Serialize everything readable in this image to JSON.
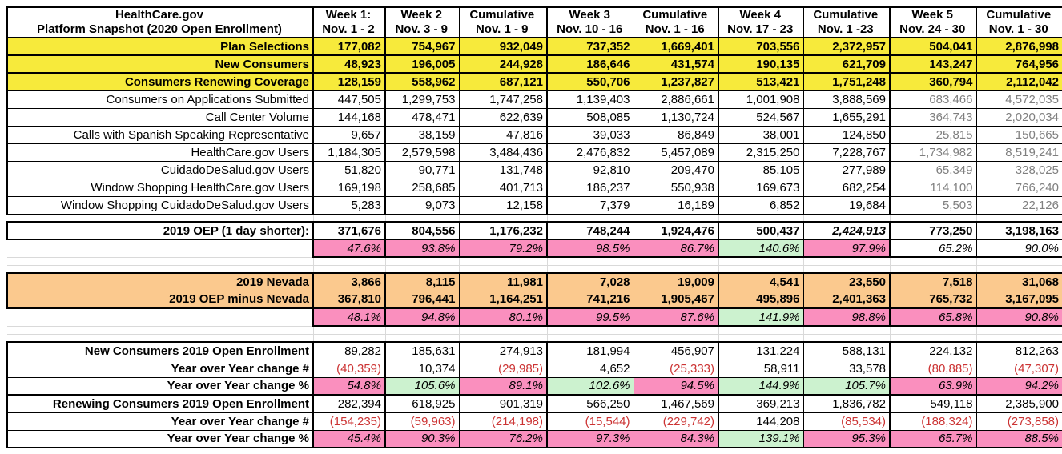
{
  "colors": {
    "yellow_highlight": "#F7EA3B",
    "pink_highlight": "#FA8FBE",
    "green_highlight": "#CCF2CF",
    "orange_highlight": "#FBC98E",
    "negative_text": "#CC3333",
    "muted_text": "#7F7F7F"
  },
  "table": {
    "title_line1": "HealthCare.gov",
    "title_line2": "Platform Snapshot (2020 Open Enrollment)",
    "columns": [
      {
        "week": "Week 1:",
        "dates": "Nov. 1 - 2"
      },
      {
        "week": "Week 2",
        "dates": "Nov. 3 - 9"
      },
      {
        "week": "Cumulative",
        "dates": "Nov. 1 - 9"
      },
      {
        "week": "Week 3",
        "dates": "Nov. 10 - 16"
      },
      {
        "week": "Cumulative",
        "dates": "Nov. 1 - 16"
      },
      {
        "week": "Week 4",
        "dates": "Nov. 17 - 23"
      },
      {
        "week": "Cumulative",
        "dates": "Nov. 1 -23"
      },
      {
        "week": "Week 5",
        "dates": "Nov. 24 - 30"
      },
      {
        "week": "Cumulative",
        "dates": "Nov. 1 - 30"
      }
    ],
    "rows": [
      {
        "label": "Plan Selections",
        "highlight": "yellow",
        "values": [
          "177,082",
          "754,967",
          "932,049",
          "737,352",
          "1,669,401",
          "703,556",
          "2,372,957",
          "504,041",
          "2,876,998"
        ]
      },
      {
        "label": "New Consumers",
        "highlight": "yellow",
        "values": [
          "48,923",
          "196,005",
          "244,928",
          "186,646",
          "431,574",
          "190,135",
          "621,709",
          "143,247",
          "764,956"
        ]
      },
      {
        "label": "Consumers Renewing Coverage",
        "highlight": "yellow",
        "values": [
          "128,159",
          "558,962",
          "687,121",
          "550,706",
          "1,237,827",
          "513,421",
          "1,751,248",
          "360,794",
          "2,112,042"
        ]
      },
      {
        "label": "Consumers on Applications Submitted",
        "highlight": null,
        "values": [
          "447,505",
          "1,299,753",
          "1,747,258",
          "1,139,403",
          "2,886,661",
          "1,001,908",
          "3,888,569",
          "683,466",
          "4,572,035"
        ]
      },
      {
        "label": "Call Center Volume",
        "highlight": null,
        "values": [
          "144,168",
          "478,471",
          "622,639",
          "508,085",
          "1,130,724",
          "524,567",
          "1,655,291",
          "364,743",
          "2,020,034"
        ]
      },
      {
        "label": "Calls with Spanish Speaking Representative",
        "highlight": null,
        "values": [
          "9,657",
          "38,159",
          "47,816",
          "39,033",
          "86,849",
          "38,001",
          "124,850",
          "25,815",
          "150,665"
        ]
      },
      {
        "label": "HealthCare.gov Users",
        "highlight": null,
        "values": [
          "1,184,305",
          "2,579,598",
          "3,484,436",
          "2,476,832",
          "5,457,089",
          "2,315,250",
          "7,228,767",
          "1,734,982",
          "8,519,241"
        ]
      },
      {
        "label": "CuidadoDeSalud.gov Users",
        "highlight": null,
        "values": [
          "51,820",
          "90,771",
          "131,748",
          "92,810",
          "209,470",
          "85,105",
          "277,989",
          "65,349",
          "328,025"
        ]
      },
      {
        "label": "Window Shopping HealthCare.gov Users",
        "highlight": null,
        "values": [
          "169,198",
          "258,685",
          "401,713",
          "186,237",
          "550,938",
          "169,673",
          "682,254",
          "114,100",
          "766,240"
        ]
      },
      {
        "label": "Window Shopping CuidadoDeSalud.gov Users",
        "highlight": null,
        "values": [
          "5,283",
          "9,073",
          "12,158",
          "7,379",
          "16,189",
          "6,852",
          "19,684",
          "5,503",
          "22,126"
        ]
      }
    ]
  },
  "oep_2019": {
    "row": {
      "label": "2019 OEP (1 day shorter):",
      "italic_col": 6,
      "values": [
        "371,676",
        "804,556",
        "1,176,232",
        "748,244",
        "1,924,476",
        "500,437",
        "2,424,913",
        "773,250",
        "3,198,163"
      ]
    },
    "percent": {
      "values": [
        "47.6%",
        "93.8%",
        "79.2%",
        "98.5%",
        "86.7%",
        "140.6%",
        "97.9%",
        "65.2%",
        "90.0%"
      ],
      "colors": [
        "pink",
        "pink",
        "pink",
        "pink",
        "pink",
        "green",
        "pink",
        "white",
        "white"
      ]
    }
  },
  "nevada": {
    "rows": [
      {
        "label": "2019 Nevada",
        "values": [
          "3,866",
          "8,115",
          "11,981",
          "7,028",
          "19,009",
          "4,541",
          "23,550",
          "7,518",
          "31,068"
        ]
      },
      {
        "label": "2019 OEP minus Nevada",
        "values": [
          "367,810",
          "796,441",
          "1,164,251",
          "741,216",
          "1,905,467",
          "495,896",
          "2,401,363",
          "765,732",
          "3,167,095"
        ]
      }
    ],
    "percent": {
      "values": [
        "48.1%",
        "94.8%",
        "80.1%",
        "99.5%",
        "87.6%",
        "141.9%",
        "98.8%",
        "65.8%",
        "90.8%"
      ],
      "colors": [
        "pink",
        "pink",
        "pink",
        "pink",
        "pink",
        "green",
        "pink",
        "pink",
        "pink"
      ]
    }
  },
  "yoy": {
    "rows": [
      {
        "label": "New Consumers 2019 Open Enrollment",
        "kind": "numbers",
        "values": [
          "89,282",
          "185,631",
          "274,913",
          "181,994",
          "456,907",
          "131,224",
          "588,131",
          "224,132",
          "812,263"
        ]
      },
      {
        "label": "Year over Year change #",
        "kind": "numbers",
        "values": [
          "(40,359)",
          "10,374",
          "(29,985)",
          "4,652",
          "(25,333)",
          "58,911",
          "33,578",
          "(80,885)",
          "(47,307)"
        ]
      },
      {
        "label": "Year over Year change %",
        "kind": "percent",
        "values": [
          "54.8%",
          "105.6%",
          "89.1%",
          "102.6%",
          "94.5%",
          "144.9%",
          "105.7%",
          "63.9%",
          "94.2%"
        ],
        "colors": [
          "pink",
          "green",
          "pink",
          "green",
          "pink",
          "green",
          "green",
          "pink",
          "pink"
        ]
      },
      {
        "label": "Renewing Consumers 2019 Open Enrollment",
        "kind": "numbers",
        "subsection": true,
        "values": [
          "282,394",
          "618,925",
          "901,319",
          "566,250",
          "1,467,569",
          "369,213",
          "1,836,782",
          "549,118",
          "2,385,900"
        ]
      },
      {
        "label": "Year over Year change #",
        "kind": "numbers",
        "values": [
          "(154,235)",
          "(59,963)",
          "(214,198)",
          "(15,544)",
          "(229,742)",
          "144,208",
          "(85,534)",
          "(188,324)",
          "(273,858)"
        ]
      },
      {
        "label": "Year over Year change %",
        "kind": "percent",
        "values": [
          "45.4%",
          "90.3%",
          "76.2%",
          "97.3%",
          "84.3%",
          "139.1%",
          "95.3%",
          "65.7%",
          "88.5%"
        ],
        "colors": [
          "pink",
          "pink",
          "pink",
          "pink",
          "pink",
          "green",
          "pink",
          "pink",
          "pink"
        ]
      }
    ]
  }
}
